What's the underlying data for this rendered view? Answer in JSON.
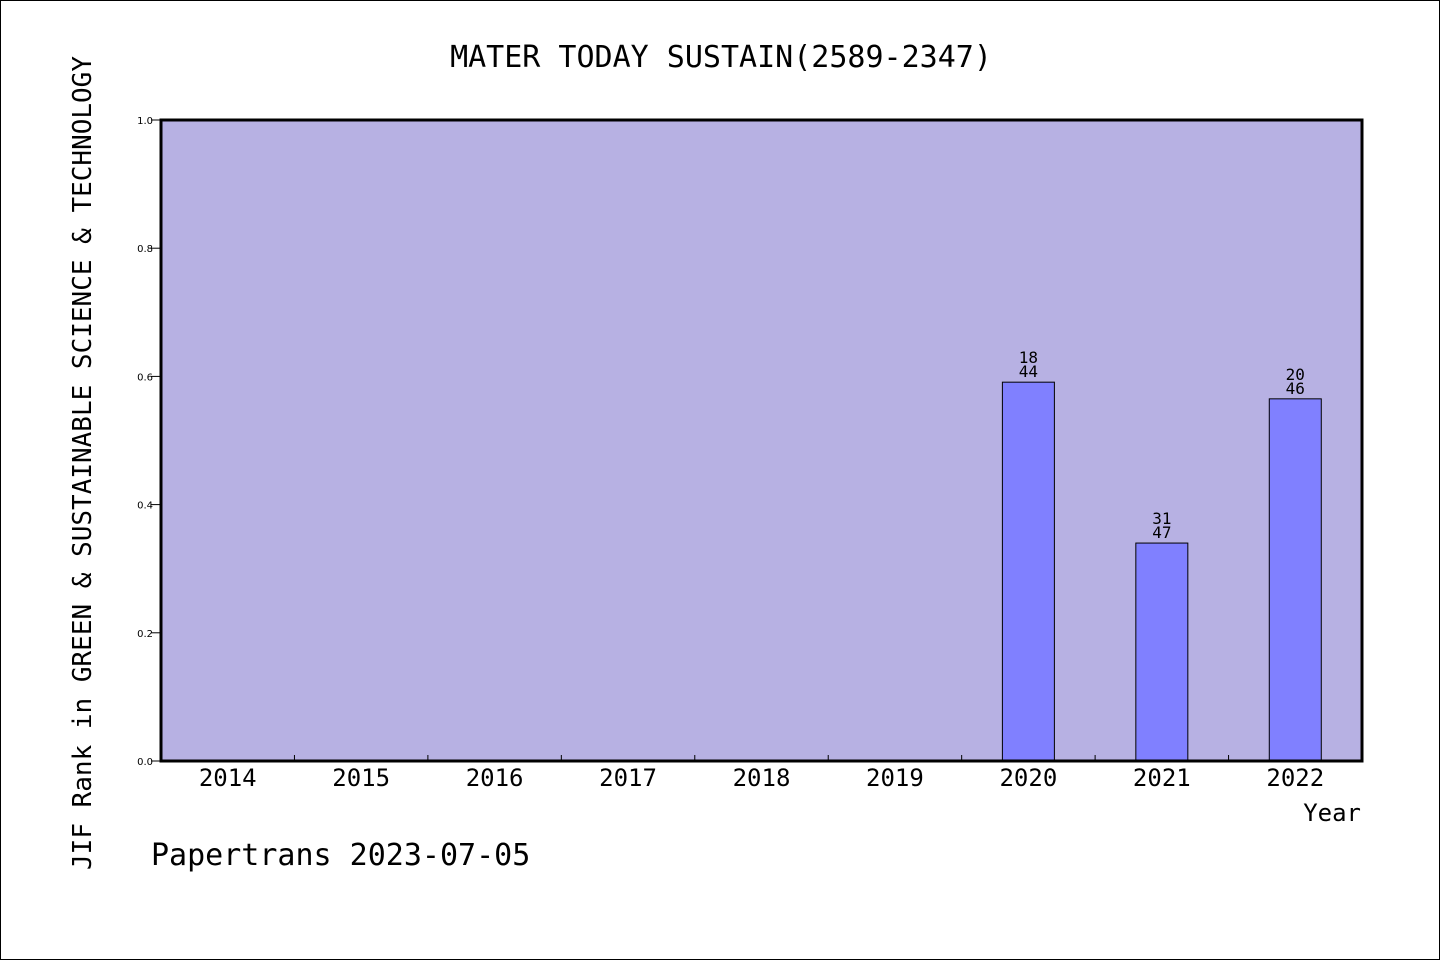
{
  "chart_data": {
    "type": "bar",
    "title": "MATER TODAY SUSTAIN(2589-2347)",
    "xlabel": "Year",
    "ylabel": "JIF Rank in GREEN & SUSTAINABLE SCIENCE & TECHNOLOGY",
    "categories": [
      "2014",
      "2015",
      "2016",
      "2017",
      "2018",
      "2019",
      "2020",
      "2021",
      "2022"
    ],
    "values": [
      null,
      null,
      null,
      null,
      null,
      null,
      0.591,
      0.34,
      0.565
    ],
    "bar_labels": [
      null,
      null,
      null,
      null,
      null,
      null,
      {
        "rank": "18",
        "total": "44"
      },
      {
        "rank": "31",
        "total": "47"
      },
      {
        "rank": "20",
        "total": "46"
      }
    ],
    "ylim": [
      0,
      1.0
    ],
    "yticks": [
      "0.0",
      "0.2",
      "0.4",
      "0.6",
      "0.8",
      "1.0"
    ],
    "grid": false,
    "colors": {
      "plot_background": "#b7b1e3",
      "bar_fill": "#8080ff",
      "bar_stroke": "#000000",
      "axis": "#000000"
    }
  },
  "footer": {
    "text": "Papertrans 2023-07-05"
  }
}
